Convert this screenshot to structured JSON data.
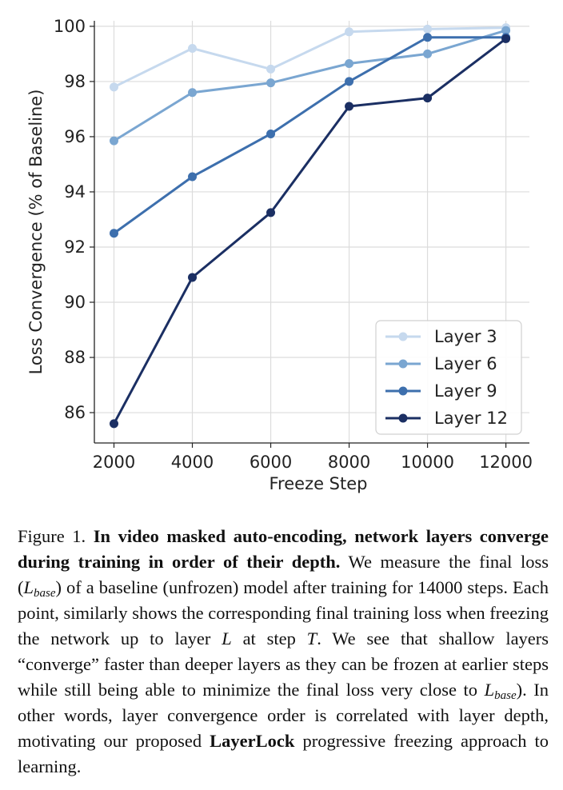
{
  "chart_data": {
    "type": "line",
    "xlabel": "Freeze Step",
    "ylabel": "Loss Convergence (% of Baseline)",
    "x": [
      2000,
      4000,
      6000,
      8000,
      10000,
      12000
    ],
    "xticks": [
      "2000",
      "4000",
      "6000",
      "8000",
      "10000",
      "12000"
    ],
    "yticks": [
      "86",
      "88",
      "90",
      "92",
      "94",
      "96",
      "98",
      "100"
    ],
    "xlim": [
      1500,
      12600
    ],
    "ylim": [
      84.9,
      100.2
    ],
    "grid": true,
    "legend_position": "bottom-right",
    "series": [
      {
        "name": "Layer 3",
        "color": "#c6d9ee",
        "values": [
          97.8,
          99.2,
          98.45,
          99.8,
          99.9,
          99.95
        ]
      },
      {
        "name": "Layer 6",
        "color": "#7aa6d1",
        "values": [
          95.85,
          97.6,
          97.95,
          98.65,
          99.0,
          99.85
        ]
      },
      {
        "name": "Layer 9",
        "color": "#3d6fad",
        "values": [
          92.5,
          94.55,
          96.1,
          98.0,
          99.6,
          99.6
        ]
      },
      {
        "name": "Layer 12",
        "color": "#1b2f63",
        "values": [
          85.6,
          90.9,
          93.25,
          97.1,
          97.4,
          99.55
        ]
      }
    ]
  },
  "caption": {
    "prefix": "Figure 1.",
    "bold": "In video masked auto-encoding, network layers converge during training in order of their depth.",
    "text1": "We measure the final loss (",
    "lbase_main": "L",
    "lbase_sub": "base",
    "text2": ") of a baseline (unfrozen) model after training for 14000 steps. Each point, similarly shows the corresponding final training loss when freezing the network up to layer",
    "var_l": "L",
    "text3": "at step",
    "var_t": "T",
    "text4": ". We see that shallow layers “converge” faster than deeper layers as they can be frozen at earlier steps while still being able to minimize the final loss very close to",
    "text5": "). In other words, layer convergence order is correlated with layer depth, motivating our proposed",
    "bold2": "LayerLock",
    "text6": "progressive freezing approach to learning."
  }
}
